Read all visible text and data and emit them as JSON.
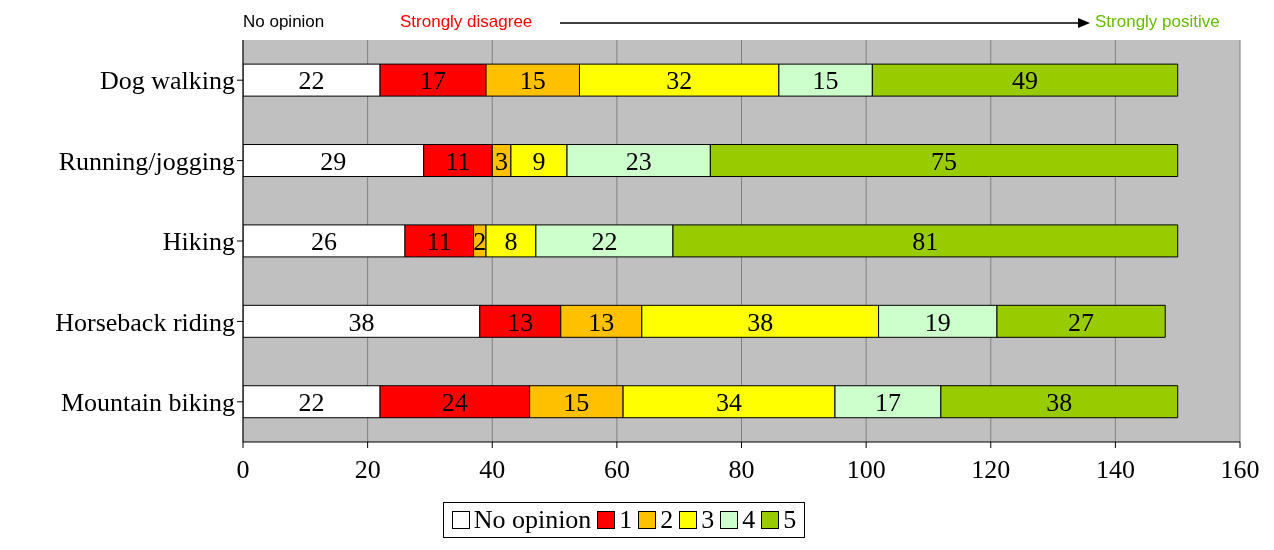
{
  "chart_data": {
    "type": "bar",
    "orientation": "horizontal",
    "stacked": true,
    "categories": [
      "Dog walking",
      "Running/jogging",
      "Hiking",
      "Horseback riding",
      "Mountain biking"
    ],
    "series": [
      {
        "name": "No opinion",
        "color": "#ffffff",
        "values": [
          22,
          29,
          26,
          38,
          22
        ]
      },
      {
        "name": "1",
        "color": "#ff0000",
        "values": [
          17,
          11,
          11,
          13,
          24
        ]
      },
      {
        "name": "2",
        "color": "#ffc000",
        "values": [
          15,
          3,
          2,
          13,
          15
        ]
      },
      {
        "name": "3",
        "color": "#ffff00",
        "values": [
          32,
          9,
          8,
          38,
          34
        ]
      },
      {
        "name": "4",
        "color": "#ccffcc",
        "values": [
          15,
          23,
          22,
          19,
          17
        ]
      },
      {
        "name": "5",
        "color": "#99cc00",
        "values": [
          49,
          75,
          81,
          27,
          38
        ]
      }
    ],
    "xlim": [
      0,
      160
    ],
    "xticks": [
      0,
      20,
      40,
      60,
      80,
      100,
      120,
      140,
      160
    ],
    "grid": "x",
    "legend": "bottom",
    "data_labels": true,
    "annotations": [
      "No opinion",
      "Strongly disagree",
      "Strongly positive"
    ]
  }
}
